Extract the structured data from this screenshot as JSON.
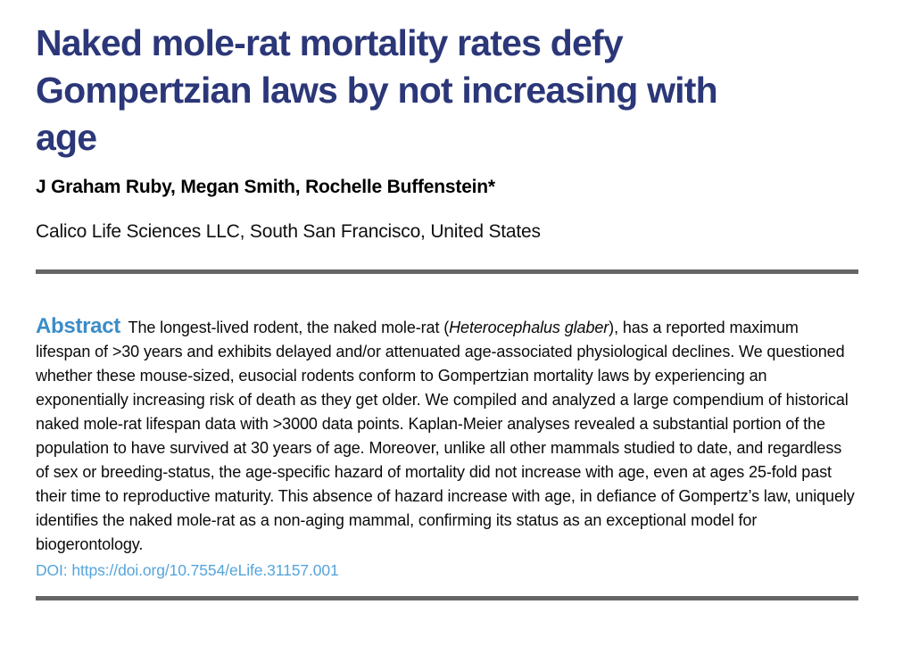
{
  "page": {
    "title_lines": [
      "Naked mole-rat mortality rates defy",
      "Gompertzian laws by not increasing with",
      "age"
    ],
    "authors": "J Graham Ruby, Megan Smith, Rochelle Buffenstein*",
    "affiliation": "Calico Life Sciences LLC, South San Francisco, United States"
  },
  "abstract": {
    "heading": "Abstract",
    "text_before_species": "The longest-lived rodent, the naked mole-rat (",
    "species_italic": "Heterocephalus glaber",
    "text_after_species": "), has a reported maximum lifespan of >30 years and exhibits delayed and/or attenuated age-associated physiological declines. We questioned whether these mouse-sized, eusocial rodents conform to Gompertzian mortality laws by experiencing an exponentially increasing risk of death as they get older. We compiled and analyzed a large compendium of historical naked mole-rat lifespan data with >3000 data points. Kaplan-Meier analyses revealed a substantial portion of the population to have survived at 30 years of age. Moreover, unlike all other mammals studied to date, and regardless of sex or breeding-status, the age-specific hazard of mortality did not increase with age, even at ages 25-fold past their time to reproductive maturity. This absence of hazard increase with age, in defiance of Gompertz’s law, uniquely identifies the naked mole-rat as a non-aging mammal, confirming its status as an exceptional model for biogerontology."
  },
  "doi": {
    "label": "DOI:",
    "url": "https://doi.org/10.7554/eLife.31157.001"
  },
  "colors": {
    "title_navy": "#2b3778",
    "abstract_heading_blue": "#3a8dc8",
    "doi_link_blue": "#55a5dc",
    "divider_gray": "#666666",
    "body_text": "#0a0a0a"
  }
}
